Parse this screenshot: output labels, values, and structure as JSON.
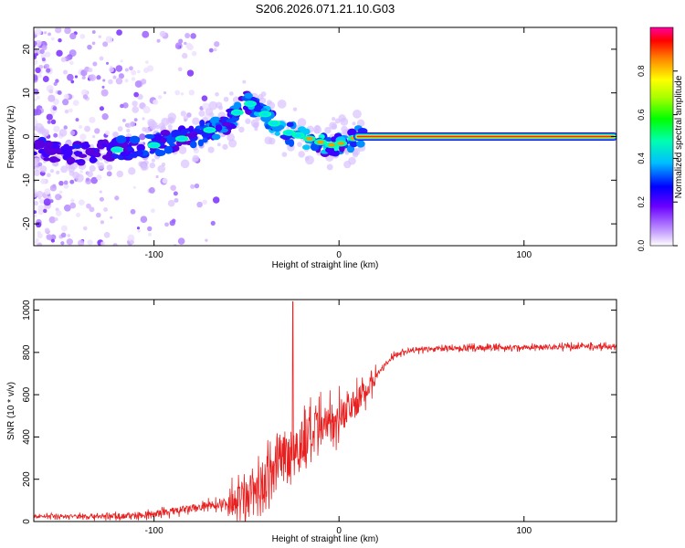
{
  "title": "S206.2026.071.21.10.G03",
  "chart_data": [
    {
      "type": "heatmap",
      "name": "spectrogram",
      "xlabel": "Height of straight line (km)",
      "ylabel": "Frequency (Hz)",
      "xlim": [
        -165,
        150
      ],
      "ylim": [
        -25,
        25
      ],
      "x_ticks": [
        -100,
        0,
        100
      ],
      "y_ticks": [
        -20,
        -10,
        0,
        10,
        20
      ],
      "ridge": {
        "x": [
          -165,
          -140,
          -120,
          -100,
          -80,
          -60,
          -50,
          -42,
          -35,
          -28,
          -20,
          -12,
          -5,
          2,
          10,
          150
        ],
        "y": [
          -3,
          -4,
          -3,
          -2,
          0,
          3,
          8,
          6,
          3,
          1,
          0,
          -1,
          -2,
          -1.5,
          0,
          0
        ]
      },
      "colorbar": {
        "label": "Normalized spectral amplitude",
        "ticks": [
          "0.0",
          "0.2",
          "0.4",
          "0.6",
          "0.8"
        ],
        "range": [
          0,
          1
        ]
      }
    },
    {
      "type": "line",
      "name": "snr",
      "xlabel": "Height of straight line (km)",
      "ylabel": "SNR (10 * v/v)",
      "xlim": [
        -165,
        150
      ],
      "ylim": [
        0,
        1050
      ],
      "x_ticks": [
        -100,
        0,
        100
      ],
      "y_ticks": [
        0,
        200,
        400,
        600,
        800,
        1000
      ],
      "color": "#e82020",
      "trend": {
        "x": [
          -165,
          -120,
          -100,
          -80,
          -60,
          -50,
          -40,
          -30,
          -20,
          -10,
          0,
          10,
          20,
          30,
          40,
          60,
          80,
          100,
          120,
          150
        ],
        "y": [
          25,
          25,
          35,
          60,
          90,
          120,
          190,
          300,
          370,
          430,
          500,
          570,
          690,
          790,
          810,
          820,
          822,
          824,
          826,
          828
        ]
      },
      "peak": {
        "x": -25,
        "y": 1040
      }
    }
  ]
}
